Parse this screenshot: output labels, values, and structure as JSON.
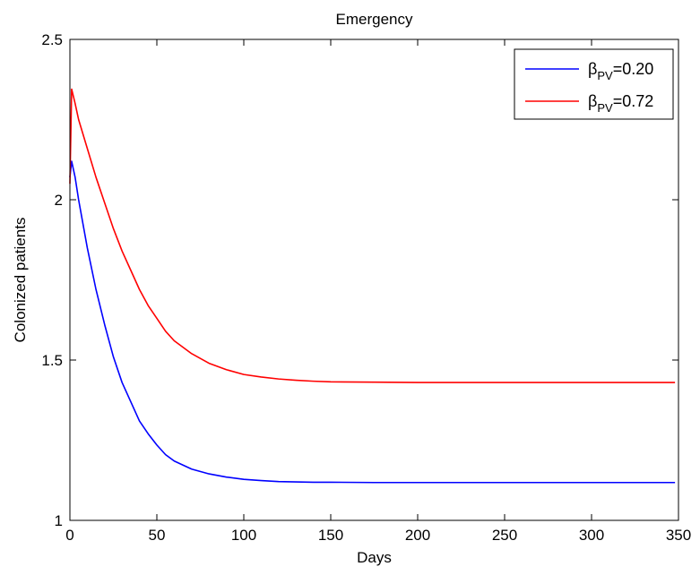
{
  "chart_data": {
    "type": "line",
    "title": "Emergency",
    "xlabel": "Days",
    "ylabel": "Colonized patients",
    "xlim": [
      0,
      350
    ],
    "ylim": [
      1,
      2.5
    ],
    "xticks": [
      0,
      50,
      100,
      150,
      200,
      250,
      300,
      350
    ],
    "xtick_labels": [
      "0",
      "50",
      "100",
      "150",
      "200",
      "250",
      "300",
      "350"
    ],
    "yticks": [
      1,
      1.5,
      2,
      2.5
    ],
    "ytick_labels": [
      "1",
      "1.5",
      "2",
      "2.5"
    ],
    "grid": false,
    "legend_position": "top-right",
    "series": [
      {
        "name": "βPV=0.20",
        "legend_symbol": "β",
        "legend_sub": "PV",
        "legend_value": "=0.20",
        "color": "#0000ff",
        "x": [
          0,
          1,
          3,
          5,
          10,
          15,
          20,
          25,
          30,
          35,
          40,
          45,
          50,
          55,
          60,
          70,
          80,
          90,
          100,
          110,
          120,
          130,
          140,
          150,
          175,
          200,
          250,
          300,
          348
        ],
        "y": [
          2.07,
          2.12,
          2.07,
          2.0,
          1.85,
          1.72,
          1.61,
          1.51,
          1.43,
          1.37,
          1.31,
          1.27,
          1.235,
          1.205,
          1.185,
          1.16,
          1.145,
          1.135,
          1.128,
          1.124,
          1.121,
          1.12,
          1.119,
          1.119,
          1.118,
          1.118,
          1.118,
          1.118,
          1.118
        ]
      },
      {
        "name": "βPV=0.72",
        "legend_symbol": "β",
        "legend_sub": "PV",
        "legend_value": "=0.72",
        "color": "#ff0000",
        "x": [
          0,
          1,
          3,
          5,
          10,
          15,
          20,
          25,
          30,
          35,
          40,
          45,
          50,
          55,
          60,
          70,
          80,
          90,
          100,
          110,
          120,
          130,
          140,
          150,
          175,
          200,
          250,
          300,
          348
        ],
        "y": [
          2.05,
          2.345,
          2.3,
          2.25,
          2.16,
          2.07,
          1.99,
          1.91,
          1.84,
          1.78,
          1.72,
          1.67,
          1.63,
          1.59,
          1.56,
          1.52,
          1.49,
          1.47,
          1.455,
          1.447,
          1.441,
          1.437,
          1.434,
          1.432,
          1.431,
          1.43,
          1.43,
          1.43,
          1.43
        ]
      }
    ]
  }
}
